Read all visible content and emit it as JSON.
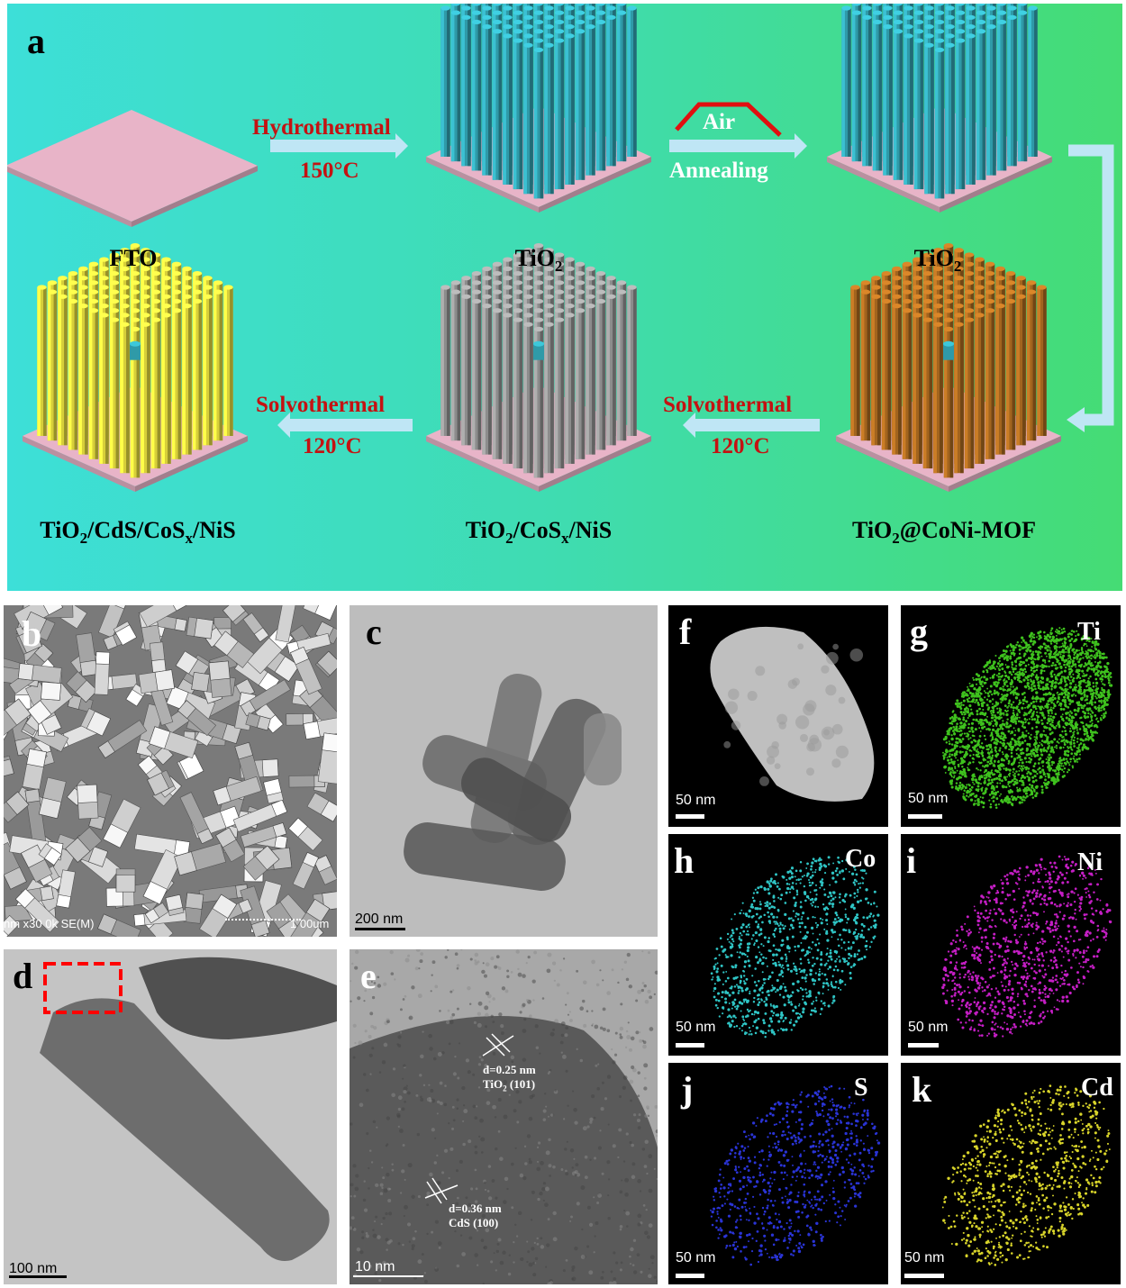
{
  "panel_a": {
    "label": "a",
    "steps": [
      {
        "name": "FTO"
      },
      {
        "name": "TiO",
        "sub": "2"
      },
      {
        "name": "TiO",
        "sub": "2"
      }
    ],
    "arrow1": {
      "top": "Hydrothermal",
      "bottom": "150°C"
    },
    "arrow2": {
      "top": "Air",
      "bottom": "Annealing"
    },
    "arrow3": {
      "top": "Solvothermal",
      "bottom": "120°C"
    },
    "arrow4": {
      "top": "Solvothermal",
      "bottom": "120°C"
    },
    "bottom_captions": {
      "left": {
        "a": "TiO",
        "b": "2",
        "c": "/CdS/CoS",
        "d": "x",
        "e": "/NiS"
      },
      "mid": {
        "a": "TiO",
        "b": "2",
        "c": "/CoS",
        "d": "x",
        "e": "/NiS"
      },
      "right": {
        "a": "TiO",
        "b": "2",
        "c": "@CoNi-MOF"
      }
    },
    "colors": {
      "substrate": "#e8b4c8",
      "tio2": "#2f9aa8",
      "gray": "#8c8c8c",
      "brown": "#a2641e",
      "yellow": "#d7cf3a",
      "arrow": "#bfe6f5"
    }
  },
  "panel_b": {
    "label": "b",
    "footer": "nm x30 0k SE(M)",
    "scale": "1 00um"
  },
  "panel_c": {
    "label": "c",
    "scale": "200 nm"
  },
  "panel_d": {
    "label": "d",
    "scale": "100 nm"
  },
  "panel_e": {
    "label": "e",
    "scale": "10 nm",
    "ann1": {
      "d": "d=0.25 nm",
      "phase": "TiO",
      "sub": "2",
      "plane": " (101)"
    },
    "ann2": {
      "d": "d=0.36 nm",
      "phase": "CdS (100)"
    }
  },
  "eds": {
    "f": {
      "label": "f",
      "element": "",
      "scale": "50 nm",
      "color": "#e0e0e0"
    },
    "g": {
      "label": "g",
      "element": "Ti",
      "scale": "50 nm",
      "color": "#3fc21e"
    },
    "h": {
      "label": "h",
      "element": "Co",
      "scale": "50 nm",
      "color": "#2fc4c4"
    },
    "i": {
      "label": "i",
      "element": "Ni",
      "scale": "50 nm",
      "color": "#c41ec4"
    },
    "j": {
      "label": "j",
      "element": "S",
      "scale": "50 nm",
      "color": "#2a34d6"
    },
    "k": {
      "label": "k",
      "element": "Cd",
      "scale": "50 nm",
      "color": "#d8d42a"
    }
  }
}
